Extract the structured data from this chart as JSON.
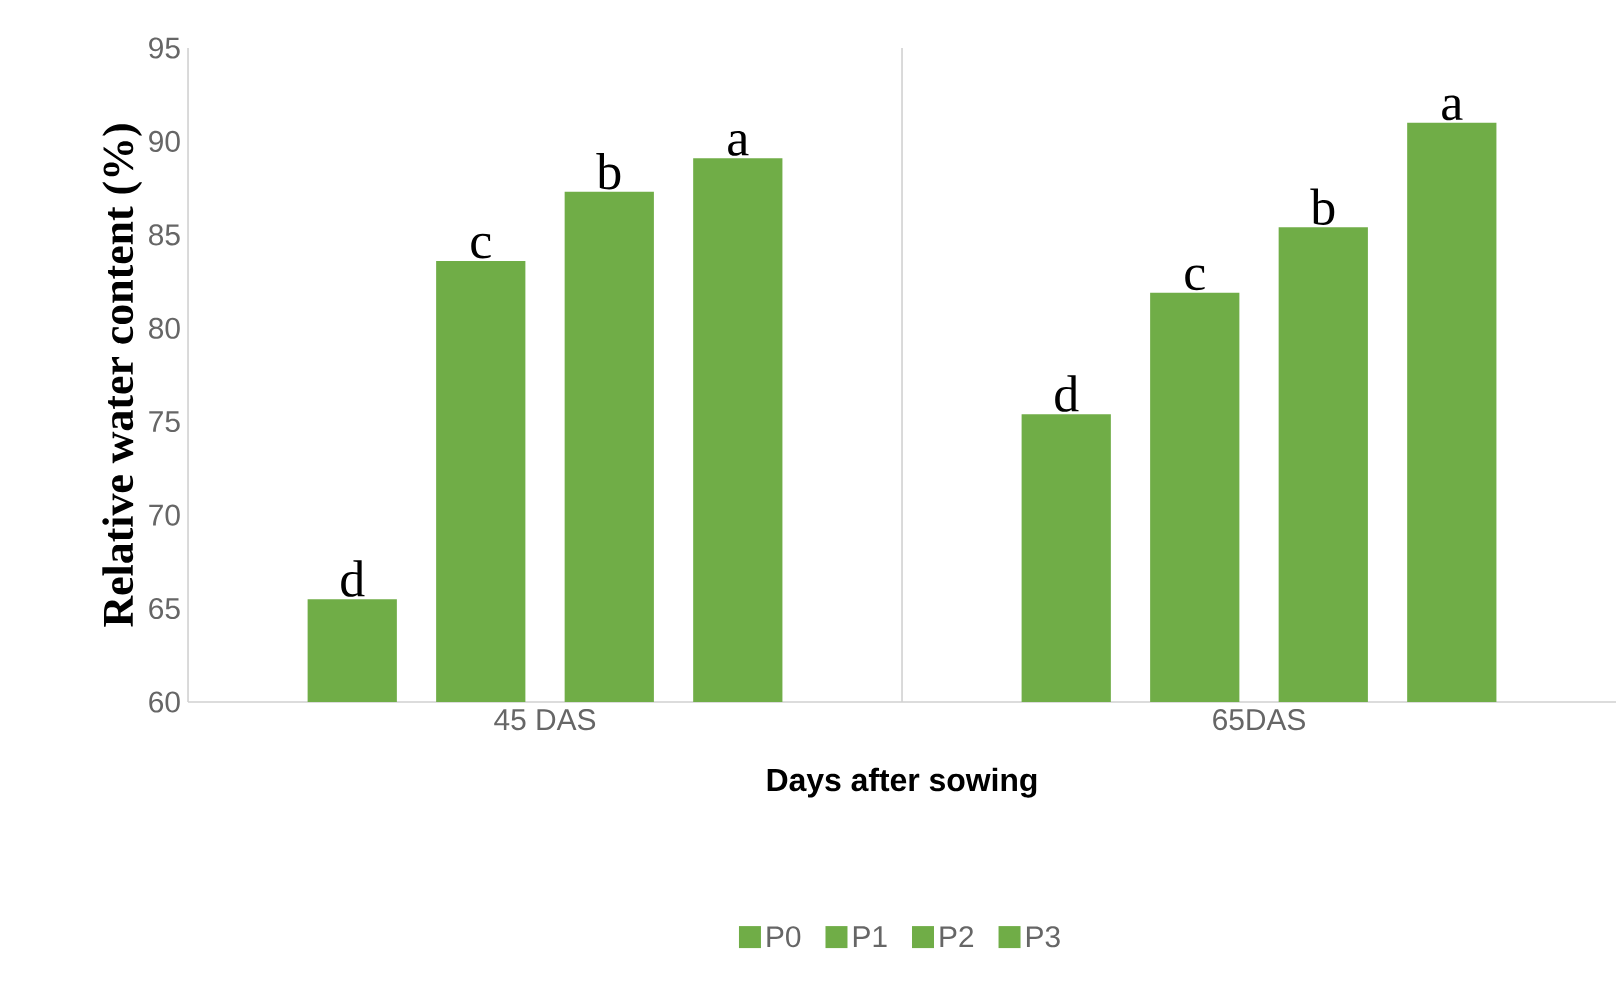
{
  "chart_data": {
    "type": "bar",
    "xlabel": "Days after sowing",
    "ylabel": "Relative water content (%)",
    "categories": [
      "45 DAS",
      "65DAS"
    ],
    "series": [
      {
        "name": "P0",
        "color": "#70ad47",
        "values": [
          65.5,
          75.4
        ],
        "value_labels": [
          "d",
          "d"
        ]
      },
      {
        "name": "P1",
        "color": "#70ad47",
        "values": [
          83.6,
          81.9
        ],
        "value_labels": [
          "c",
          "c"
        ]
      },
      {
        "name": "P2",
        "color": "#70ad47",
        "values": [
          87.3,
          85.4
        ],
        "value_labels": [
          "b",
          "b"
        ]
      },
      {
        "name": "P3",
        "color": "#70ad47",
        "values": [
          89.1,
          91.0
        ],
        "value_labels": [
          "a",
          "a"
        ]
      }
    ],
    "ylim": [
      60,
      95
    ],
    "yticks": [
      60,
      65,
      70,
      75,
      80,
      85,
      90,
      95
    ],
    "grid": "x",
    "legend": "bottom"
  }
}
